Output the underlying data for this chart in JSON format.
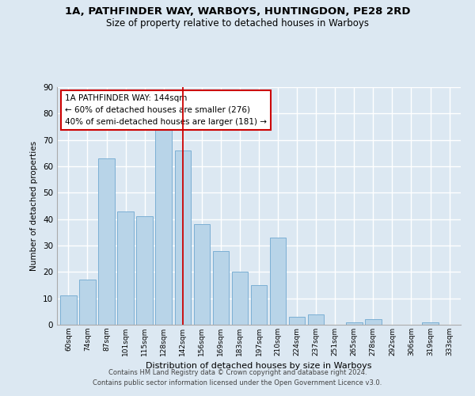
{
  "title1": "1A, PATHFINDER WAY, WARBOYS, HUNTINGDON, PE28 2RD",
  "title2": "Size of property relative to detached houses in Warboys",
  "xlabel": "Distribution of detached houses by size in Warboys",
  "ylabel": "Number of detached properties",
  "bar_labels": [
    "60sqm",
    "74sqm",
    "87sqm",
    "101sqm",
    "115sqm",
    "128sqm",
    "142sqm",
    "156sqm",
    "169sqm",
    "183sqm",
    "197sqm",
    "210sqm",
    "224sqm",
    "237sqm",
    "251sqm",
    "265sqm",
    "278sqm",
    "292sqm",
    "306sqm",
    "319sqm",
    "333sqm"
  ],
  "bar_values": [
    11,
    17,
    63,
    43,
    41,
    74,
    66,
    38,
    28,
    20,
    15,
    33,
    3,
    4,
    0,
    1,
    2,
    0,
    0,
    1,
    0
  ],
  "bar_color": "#b8d4e8",
  "bar_edge_color": "#7bafd4",
  "vline_x_index": 6,
  "vline_color": "#cc0000",
  "annotation_title": "1A PATHFINDER WAY: 144sqm",
  "annotation_line1": "← 60% of detached houses are smaller (276)",
  "annotation_line2": "40% of semi-detached houses are larger (181) →",
  "annotation_box_color": "#ffffff",
  "annotation_box_edge": "#cc0000",
  "ylim": [
    0,
    90
  ],
  "yticks": [
    0,
    10,
    20,
    30,
    40,
    50,
    60,
    70,
    80,
    90
  ],
  "footnote1": "Contains HM Land Registry data © Crown copyright and database right 2024.",
  "footnote2": "Contains public sector information licensed under the Open Government Licence v3.0.",
  "bg_color": "#dce8f2",
  "plot_bg_color": "#dce8f2",
  "grid_color": "#ffffff"
}
